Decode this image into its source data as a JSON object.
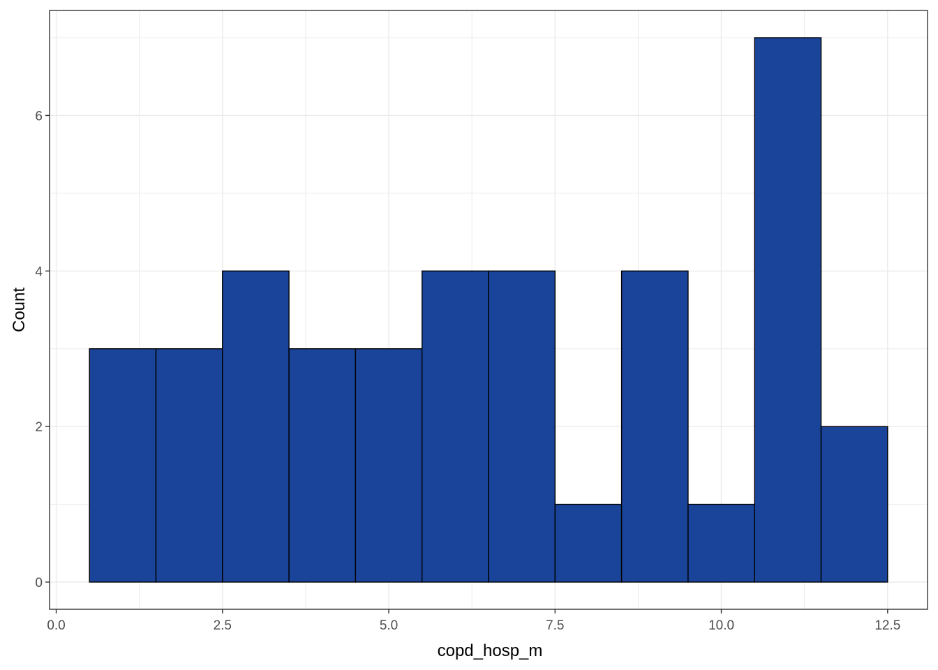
{
  "chart_data": {
    "type": "bar",
    "subtype": "histogram",
    "title": "",
    "xlabel": "copd_hosp_m",
    "ylabel": "Count",
    "bin_width": 1,
    "bins": [
      {
        "x": 1,
        "count": 3
      },
      {
        "x": 2,
        "count": 3
      },
      {
        "x": 3,
        "count": 4
      },
      {
        "x": 4,
        "count": 3
      },
      {
        "x": 5,
        "count": 3
      },
      {
        "x": 6,
        "count": 4
      },
      {
        "x": 7,
        "count": 4
      },
      {
        "x": 8,
        "count": 1
      },
      {
        "x": 9,
        "count": 4
      },
      {
        "x": 10,
        "count": 1
      },
      {
        "x": 11,
        "count": 7
      },
      {
        "x": 12,
        "count": 2
      }
    ],
    "xlim": [
      -0.1,
      13.1
    ],
    "ylim": [
      -0.35,
      7.35
    ],
    "x_ticks": [
      {
        "value": 0,
        "label": "0.0"
      },
      {
        "value": 2.5,
        "label": "2.5"
      },
      {
        "value": 5,
        "label": "5.0"
      },
      {
        "value": 7.5,
        "label": "7.5"
      },
      {
        "value": 10,
        "label": "10.0"
      },
      {
        "value": 12.5,
        "label": "12.5"
      }
    ],
    "y_ticks": [
      {
        "value": 0,
        "label": "0"
      },
      {
        "value": 2,
        "label": "2"
      },
      {
        "value": 4,
        "label": "4"
      },
      {
        "value": 6,
        "label": "6"
      }
    ],
    "grid": true,
    "legend": "none",
    "colors": {
      "fill": "#1a4499",
      "outline": "#000000",
      "grid": "#ebebeb",
      "panel_border": "#333333"
    }
  }
}
